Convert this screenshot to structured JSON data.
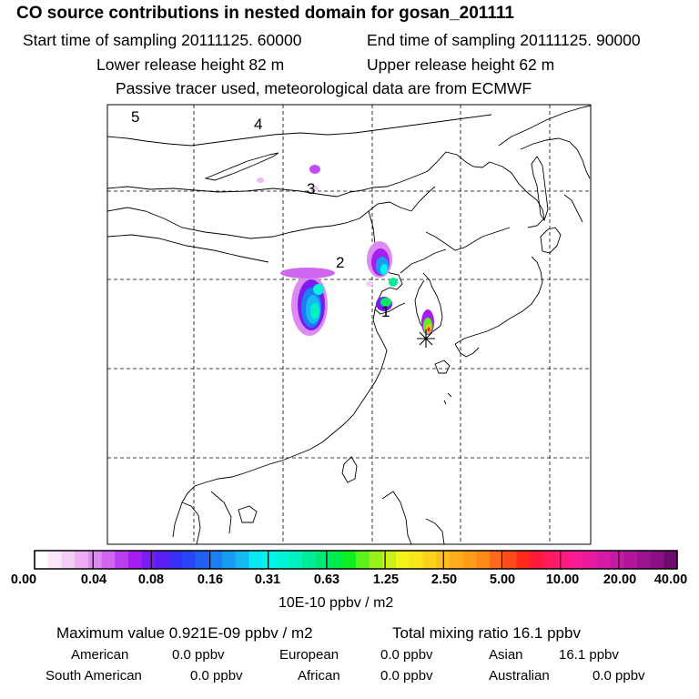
{
  "title": "CO  source contributions in nested domain for gosan_201111",
  "sampling": {
    "start": "Start time of sampling 20111125. 60000",
    "end": "End time of sampling 20111125. 90000"
  },
  "release": {
    "lower": "Lower release height   82 m",
    "upper": "Upper release height   62 m"
  },
  "tracer_note": "Passive tracer used, meteorological data are from ECMWF",
  "map": {
    "receptor_marker": "receptor-star",
    "labels": [
      {
        "id": "5",
        "text": "5"
      },
      {
        "id": "4",
        "text": "4"
      },
      {
        "id": "3",
        "text": "3"
      },
      {
        "id": "2",
        "text": "2"
      },
      {
        "id": "1",
        "text": "1"
      }
    ]
  },
  "colorbar": {
    "ticks": [
      "0.00",
      "0.04",
      "0.08",
      "0.16",
      "0.31",
      "0.63",
      "1.25",
      "2.50",
      "5.00",
      "10.00",
      "20.00",
      "40.00"
    ],
    "unit": "10E-10 ppbv / m2",
    "colors": [
      "#ffffff",
      "#fbe6fb",
      "#f4cdf6",
      "#ecb0f2",
      "#dd8af2",
      "#cf66f0",
      "#bb3df0",
      "#a41ff0",
      "#7a1bf2",
      "#5a1ff5",
      "#3a2ff7",
      "#2846f5",
      "#1f60f3",
      "#1b7ef2",
      "#189cf2",
      "#16baf2",
      "#08e8f5",
      "#00f5f0",
      "#00f5d8",
      "#00f2c0",
      "#00ec98",
      "#00e878",
      "#00ec4a",
      "#10f020",
      "#5ef21a",
      "#9af01a",
      "#ccef1a",
      "#f3f51a",
      "#f8e61a",
      "#fad21a",
      "#fdbf1a",
      "#ffad1a",
      "#ff9c1a",
      "#ff8a1a",
      "#ff6a1a",
      "#ff4a1a",
      "#ff2a1a",
      "#ff1a3a",
      "#ff1a5e",
      "#ff1a80",
      "#f51a95",
      "#e81aa2",
      "#d91aa8",
      "#c61aa6",
      "#b2169e",
      "#9e1392",
      "#8a1084",
      "#6e0c6e"
    ]
  },
  "stats": {
    "maximum": "Maximum value  0.921E-09 ppbv / m2",
    "total": "Total mixing ratio       16.1 ppbv",
    "rows": [
      [
        {
          "label": "American",
          "value": "0.0 ppbv"
        },
        {
          "label": "European",
          "value": "0.0 ppbv"
        },
        {
          "label": "Asian",
          "value": "16.1 ppbv"
        }
      ],
      [
        {
          "label": "South American",
          "value": "0.0 ppbv"
        },
        {
          "label": "African",
          "value": "0.0 ppbv"
        },
        {
          "label": "Australian",
          "value": "0.0 ppbv"
        }
      ]
    ]
  }
}
